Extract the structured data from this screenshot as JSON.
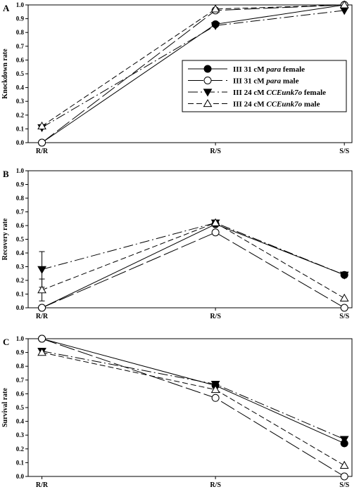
{
  "chart_data": [
    {
      "panel": "A",
      "type": "line",
      "ylabel": "Knockdown rate",
      "categories": [
        "R/R",
        "R/S",
        "S/S"
      ],
      "ylim": [
        0,
        1.0
      ],
      "yticks": [
        "0.0",
        "0.1",
        "0.2",
        "0.3",
        "0.4",
        "0.5",
        "0.6",
        "0.7",
        "0.8",
        "0.9",
        "1.0"
      ],
      "series": [
        {
          "name": "III 31 cM para female",
          "values": [
            0.0,
            0.86,
            1.0
          ]
        },
        {
          "name": "III 31 cM para male",
          "values": [
            0.0,
            0.96,
            1.0
          ]
        },
        {
          "name": "III 24 cM CCEunk7o female",
          "values": [
            0.11,
            0.85,
            0.96
          ]
        },
        {
          "name": "III 24 cM CCEunk7o male",
          "values": [
            0.12,
            0.97,
            1.0
          ]
        }
      ]
    },
    {
      "panel": "B",
      "type": "line",
      "ylabel": "Recovery rate",
      "categories": [
        "R/R",
        "R/S",
        "S/S"
      ],
      "ylim": [
        0,
        1.0
      ],
      "yticks": [
        "0.0",
        "0.1",
        "0.2",
        "0.3",
        "0.4",
        "0.5",
        "0.6",
        "0.7",
        "0.8",
        "0.9",
        "1.0"
      ],
      "series": [
        {
          "name": "III 31 cM para female",
          "values": [
            0.0,
            0.61,
            0.24
          ]
        },
        {
          "name": "III 31 cM para male",
          "values": [
            0.0,
            0.55,
            0.0
          ]
        },
        {
          "name": "III 24 cM CCEunk7o female",
          "values": [
            0.28,
            0.62,
            0.24
          ],
          "errors": [
            0.13,
            null,
            null
          ]
        },
        {
          "name": "III 24 cM CCEunk7o male",
          "values": [
            0.13,
            0.62,
            0.07
          ],
          "errors": [
            0.08,
            null,
            null
          ]
        }
      ]
    },
    {
      "panel": "C",
      "type": "line",
      "ylabel": "Survival rate",
      "categories": [
        "R/R",
        "R/S",
        "S/S"
      ],
      "ylim": [
        0,
        1.0
      ],
      "yticks": [
        "0.0",
        "0.1",
        "0.2",
        "0.3",
        "0.4",
        "0.5",
        "0.6",
        "0.7",
        "0.8",
        "0.9",
        "1.0"
      ],
      "series": [
        {
          "name": "III 31 cM para female",
          "values": [
            1.0,
            0.66,
            0.24
          ]
        },
        {
          "name": "III 31 cM para male",
          "values": [
            1.0,
            0.57,
            0.0
          ]
        },
        {
          "name": "III 24 cM CCEunk7o female",
          "values": [
            0.91,
            0.67,
            0.27
          ]
        },
        {
          "name": "III 24 cM CCEunk7o male",
          "values": [
            0.9,
            0.63,
            0.08
          ]
        }
      ]
    }
  ],
  "legend": [
    {
      "prefix": "III 31 cM ",
      "italic": "para",
      "suffix": " female",
      "marker": "circle-filled",
      "dash": "solid"
    },
    {
      "prefix": "III 31 cM ",
      "italic": "para",
      "suffix": " male",
      "marker": "circle-open",
      "dash": "long-dash"
    },
    {
      "prefix": "III 24 cM ",
      "italic": "CCEunk7o",
      "suffix": " female",
      "marker": "triangle-down-filled",
      "dash": "dash-dot"
    },
    {
      "prefix": "III 24 cM ",
      "italic": "CCEunk7o",
      "suffix": " male",
      "marker": "triangle-up-open",
      "dash": "short-dash"
    }
  ],
  "legend_position": "inside panel A, lower-right"
}
